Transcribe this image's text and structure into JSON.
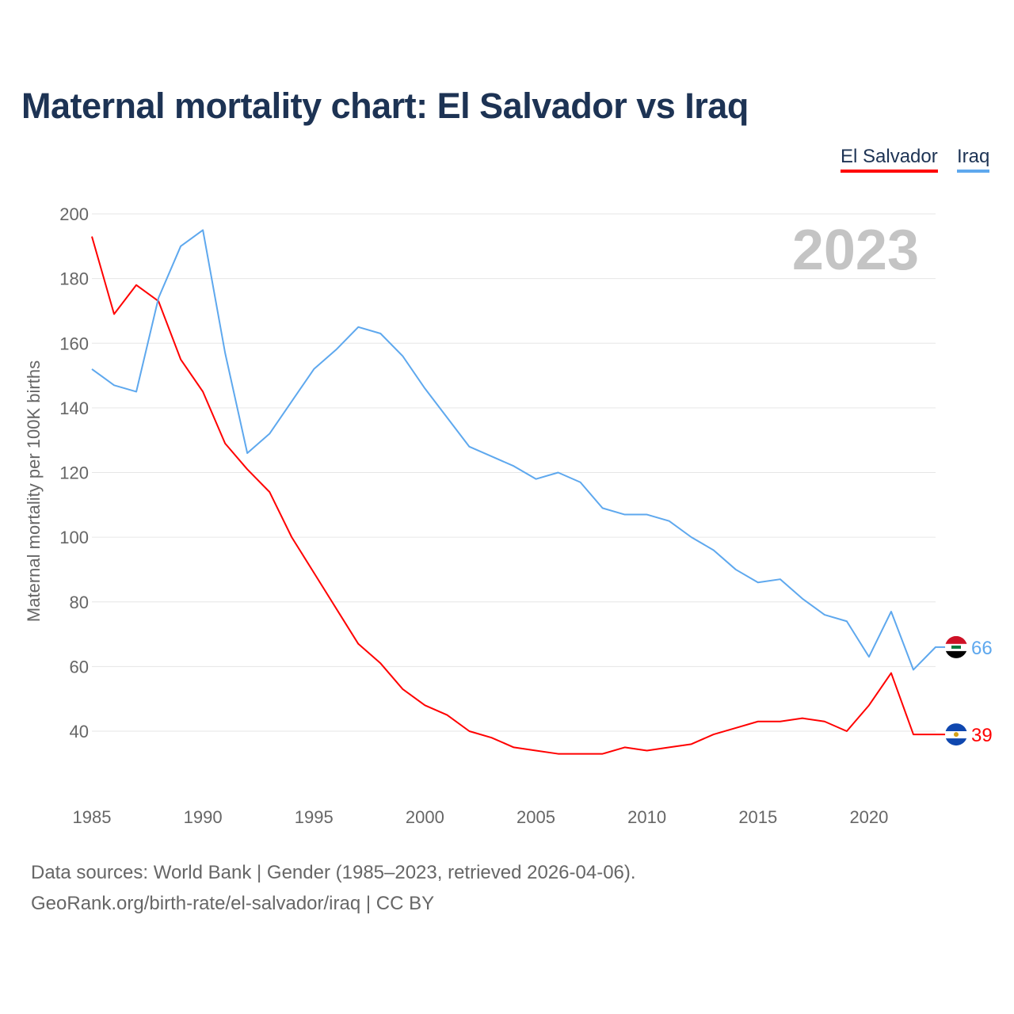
{
  "chart_data": {
    "type": "line",
    "title": "Maternal mortality chart: El Salvador vs Iraq",
    "xlabel": "",
    "ylabel": "Maternal mortality per 100K births",
    "x": [
      1985,
      1986,
      1987,
      1988,
      1989,
      1990,
      1991,
      1992,
      1993,
      1994,
      1995,
      1996,
      1997,
      1998,
      1999,
      2000,
      2001,
      2002,
      2003,
      2004,
      2005,
      2006,
      2007,
      2008,
      2009,
      2010,
      2011,
      2012,
      2013,
      2014,
      2015,
      2016,
      2017,
      2018,
      2019,
      2020,
      2021,
      2022,
      2023
    ],
    "xlim": [
      1985,
      2023
    ],
    "ylim": [
      20,
      200
    ],
    "xticks": [
      "1985",
      "1990",
      "1995",
      "2000",
      "2005",
      "2010",
      "2015",
      "2020"
    ],
    "yticks": [
      "40",
      "60",
      "80",
      "100",
      "120",
      "140",
      "160",
      "180",
      "200"
    ],
    "grid": true,
    "legend_position": "top-right",
    "year_annotation": "2023",
    "series": [
      {
        "name": "El Salvador",
        "color": "#ff0000",
        "end_label": "39",
        "flag": "el-salvador",
        "values": [
          193,
          169,
          178,
          173,
          155,
          145,
          129,
          121,
          114,
          100,
          89,
          78,
          67,
          61,
          53,
          48,
          45,
          40,
          38,
          35,
          34,
          33,
          33,
          33,
          35,
          34,
          35,
          36,
          39,
          41,
          43,
          43,
          44,
          43,
          40,
          48,
          58,
          39,
          39
        ]
      },
      {
        "name": "Iraq",
        "color": "#5ea8ee",
        "end_label": "66",
        "flag": "iraq",
        "values": [
          152,
          147,
          145,
          174,
          190,
          195,
          157,
          126,
          132,
          142,
          152,
          158,
          165,
          163,
          156,
          146,
          137,
          128,
          125,
          122,
          118,
          120,
          117,
          109,
          107,
          107,
          105,
          100,
          96,
          90,
          86,
          87,
          81,
          76,
          74,
          63,
          77,
          59,
          66
        ]
      }
    ]
  },
  "footer": {
    "line1": "Data sources: World Bank | Gender (1985–2023, retrieved 2026-04-06).",
    "line2": "GeoRank.org/birth-rate/el-salvador/iraq | CC BY"
  }
}
